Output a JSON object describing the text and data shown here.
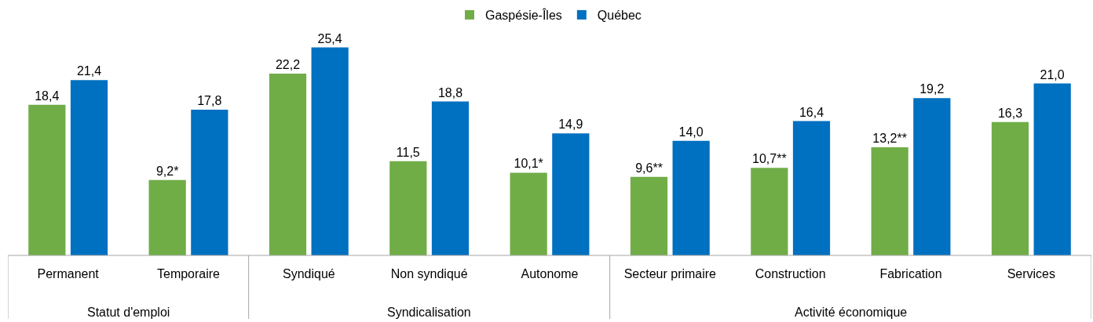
{
  "chart_data": {
    "type": "bar",
    "categories": [
      "Permanent",
      "Temporaire",
      "Syndiqué",
      "Non syndiqué",
      "Autonome",
      "Secteur primaire",
      "Construction",
      "Fabrication",
      "Services"
    ],
    "series": [
      {
        "name": "Gaspésie-Îles",
        "color": "#70ad47",
        "values": [
          18.4,
          9.2,
          22.2,
          11.5,
          10.1,
          9.6,
          10.7,
          13.2,
          16.3
        ],
        "value_labels": [
          "18,4",
          "9,2*",
          "22,2",
          "11,5",
          "10,1*",
          "9,6**",
          "10,7**",
          "13,2**",
          "16,3"
        ]
      },
      {
        "name": "Québec",
        "color": "#0070c0",
        "values": [
          21.4,
          17.8,
          25.4,
          18.8,
          14.9,
          14.0,
          16.4,
          19.2,
          21.0
        ],
        "value_labels": [
          "21,4",
          "17,8",
          "25,4",
          "18,8",
          "14,9",
          "14,0",
          "16,4",
          "19,2",
          "21,0"
        ]
      }
    ],
    "annotations": [
      "Statut d'emploi",
      "Syndicalisation",
      "Activité économique"
    ],
    "legend": "top",
    "grid": false,
    "tick_labels": "x"
  }
}
